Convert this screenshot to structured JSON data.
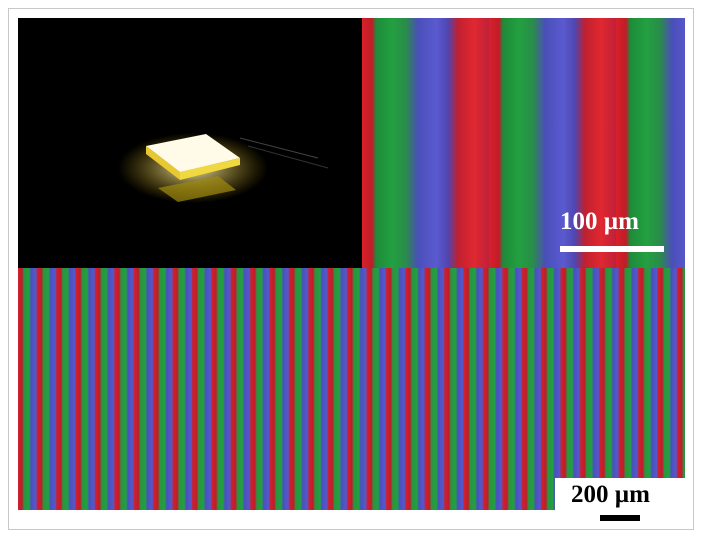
{
  "panels": {
    "top_right": {
      "scale_label": "100 µm"
    },
    "bottom": {
      "scale_label": "200 µm"
    }
  }
}
